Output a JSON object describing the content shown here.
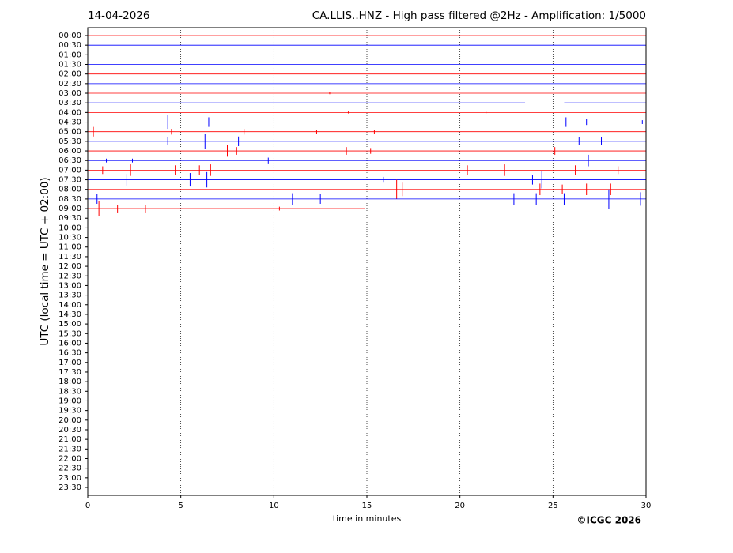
{
  "chart_data": {
    "type": "helicorder",
    "title_left": "14-04-2026",
    "title": "CA.LLIS..HNZ - High pass filtered @2Hz - Amplification: 1/5000",
    "xlabel": "time in minutes",
    "ylabel": "UTC (local time = UTC + 02:00)",
    "footer": "©ICGC 2026",
    "xlim": [
      0,
      30
    ],
    "xticks": [
      0,
      5,
      10,
      15,
      20,
      25,
      30
    ],
    "grid": true,
    "categories": [
      "00:00",
      "00:30",
      "01:00",
      "01:30",
      "02:00",
      "02:30",
      "03:00",
      "03:30",
      "04:00",
      "04:30",
      "05:00",
      "05:30",
      "06:00",
      "06:30",
      "07:00",
      "07:30",
      "08:00",
      "08:30",
      "09:00",
      "09:30",
      "10:00",
      "10:30",
      "11:00",
      "11:30",
      "12:00",
      "12:30",
      "13:00",
      "13:30",
      "14:00",
      "14:30",
      "15:00",
      "15:30",
      "16:00",
      "16:30",
      "17:00",
      "17:30",
      "18:00",
      "18:30",
      "19:00",
      "19:30",
      "20:00",
      "20:30",
      "21:00",
      "21:30",
      "22:00",
      "22:30",
      "23:00",
      "23:30"
    ],
    "traces": [
      {
        "color": "#ff0000",
        "segments": [
          [
            0,
            30
          ]
        ],
        "events": []
      },
      {
        "color": "#0000ff",
        "segments": [
          [
            0,
            30
          ]
        ],
        "events": []
      },
      {
        "color": "#ff0000",
        "segments": [
          [
            0,
            30
          ]
        ],
        "events": []
      },
      {
        "color": "#0000ff",
        "segments": [
          [
            0,
            30
          ]
        ],
        "events": []
      },
      {
        "color": "#ff0000",
        "segments": [
          [
            0,
            30
          ]
        ],
        "events": []
      },
      {
        "color": "#0000ff",
        "segments": [
          [
            0,
            30
          ]
        ],
        "events": []
      },
      {
        "color": "#ff0000",
        "segments": [
          [
            0,
            30
          ]
        ],
        "events": [
          [
            13,
            0.1
          ]
        ]
      },
      {
        "color": "#0000ff",
        "segments": [
          [
            0,
            23.5
          ],
          [
            25.6,
            30
          ]
        ],
        "events": []
      },
      {
        "color": "#ff0000",
        "segments": [
          [
            0,
            30
          ]
        ],
        "events": [
          [
            14,
            0.1
          ],
          [
            21.4,
            0.1
          ]
        ]
      },
      {
        "color": "#0000ff",
        "segments": [
          [
            0,
            30
          ]
        ],
        "events": [
          [
            4.3,
            0.7
          ],
          [
            6.5,
            0.5
          ],
          [
            25.7,
            0.5
          ],
          [
            26.8,
            0.3
          ],
          [
            29.8,
            0.2
          ]
        ]
      },
      {
        "color": "#ff0000",
        "segments": [
          [
            0,
            30
          ]
        ],
        "events": [
          [
            0.3,
            0.5
          ],
          [
            4.5,
            0.3
          ],
          [
            8.4,
            0.3
          ],
          [
            12.3,
            0.2
          ],
          [
            15.4,
            0.2
          ]
        ]
      },
      {
        "color": "#0000ff",
        "segments": [
          [
            0,
            30
          ]
        ],
        "events": [
          [
            4.3,
            0.4
          ],
          [
            6.3,
            0.8
          ],
          [
            8.1,
            0.5
          ],
          [
            26.4,
            0.4
          ],
          [
            27.6,
            0.4
          ]
        ]
      },
      {
        "color": "#ff0000",
        "segments": [
          [
            0,
            30
          ]
        ],
        "events": [
          [
            7.5,
            0.6
          ],
          [
            8.0,
            0.4
          ],
          [
            13.9,
            0.4
          ],
          [
            15.2,
            0.3
          ],
          [
            25.1,
            0.4
          ]
        ]
      },
      {
        "color": "#0000ff",
        "segments": [
          [
            0,
            30
          ]
        ],
        "events": [
          [
            9.7,
            0.3
          ],
          [
            26.9,
            0.6
          ],
          [
            1.0,
            0.2
          ],
          [
            2.4,
            0.2
          ]
        ]
      },
      {
        "color": "#ff0000",
        "segments": [
          [
            0,
            30
          ]
        ],
        "events": [
          [
            0.8,
            0.4
          ],
          [
            2.3,
            0.6
          ],
          [
            4.7,
            0.5
          ],
          [
            6.0,
            0.5
          ],
          [
            6.6,
            0.6
          ],
          [
            20.4,
            0.5
          ],
          [
            22.4,
            0.6
          ],
          [
            26.2,
            0.5
          ],
          [
            28.5,
            0.4
          ]
        ]
      },
      {
        "color": "#0000ff",
        "segments": [
          [
            0,
            30
          ]
        ],
        "events": [
          [
            2.1,
            0.6
          ],
          [
            5.5,
            0.7
          ],
          [
            6.4,
            0.8
          ],
          [
            15.9,
            0.3
          ],
          [
            23.9,
            0.5
          ],
          [
            24.4,
            0.9
          ]
        ]
      },
      {
        "color": "#ff0000",
        "segments": [
          [
            0,
            30
          ]
        ],
        "events": [
          [
            16.6,
            1.0
          ],
          [
            16.9,
            0.7
          ],
          [
            24.3,
            0.6
          ],
          [
            25.5,
            0.5
          ],
          [
            26.8,
            0.6
          ],
          [
            28.1,
            0.6
          ]
        ]
      },
      {
        "color": "#0000ff",
        "segments": [
          [
            0,
            30
          ]
        ],
        "events": [
          [
            0.5,
            0.5
          ],
          [
            11.0,
            0.6
          ],
          [
            12.5,
            0.5
          ],
          [
            22.9,
            0.6
          ],
          [
            24.1,
            0.6
          ],
          [
            25.6,
            0.6
          ],
          [
            28.0,
            1.0
          ],
          [
            29.7,
            0.7
          ]
        ]
      },
      {
        "color": "#ff0000",
        "segments": [
          [
            0,
            14.9
          ]
        ],
        "events": [
          [
            0.6,
            0.8
          ],
          [
            1.6,
            0.4
          ],
          [
            3.1,
            0.4
          ],
          [
            10.3,
            0.2
          ]
        ]
      }
    ]
  }
}
